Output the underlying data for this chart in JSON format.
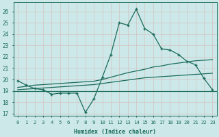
{
  "xlabel": "Humidex (Indice chaleur)",
  "bg_color": "#cce8e8",
  "grid_color": "#b0d0d0",
  "line_color": "#1a6b5a",
  "xlim": [
    -0.5,
    23.5
  ],
  "ylim": [
    16.8,
    26.8
  ],
  "yticks": [
    17,
    18,
    19,
    20,
    21,
    22,
    23,
    24,
    25,
    26
  ],
  "xticks": [
    0,
    1,
    2,
    3,
    4,
    5,
    6,
    7,
    8,
    9,
    10,
    11,
    12,
    13,
    14,
    15,
    16,
    17,
    18,
    19,
    20,
    21,
    22,
    23
  ],
  "main_y": [
    19.9,
    19.5,
    19.2,
    19.1,
    18.7,
    18.8,
    18.8,
    18.8,
    17.1,
    18.3,
    20.2,
    22.2,
    25.0,
    24.8,
    26.2,
    24.5,
    24.0,
    22.7,
    22.6,
    22.2,
    21.6,
    21.3,
    20.1,
    19.1
  ],
  "line1_y": [
    19.3,
    19.4,
    19.5,
    19.55,
    19.6,
    19.65,
    19.7,
    19.75,
    19.8,
    19.85,
    20.0,
    20.2,
    20.4,
    20.6,
    20.75,
    20.9,
    21.1,
    21.2,
    21.35,
    21.45,
    21.55,
    21.65,
    21.7,
    21.75
  ],
  "line2_y": [
    19.1,
    19.15,
    19.2,
    19.25,
    19.3,
    19.35,
    19.4,
    19.45,
    19.5,
    19.55,
    19.65,
    19.75,
    19.85,
    19.95,
    20.05,
    20.15,
    20.2,
    20.25,
    20.3,
    20.35,
    20.4,
    20.45,
    20.5,
    20.55
  ],
  "hline_y": 19.0
}
